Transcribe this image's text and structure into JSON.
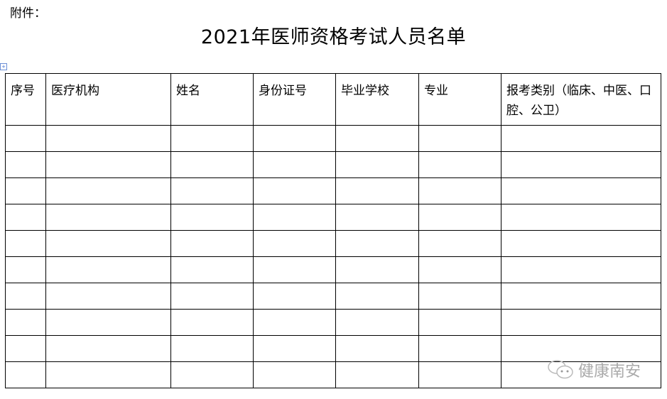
{
  "attachment_label": "附件：",
  "title": "2021年医师资格考试人员名单",
  "table": {
    "headers": [
      "序号",
      "医疗机构",
      "姓名",
      "身份证号",
      "毕业学校",
      "专业",
      "报考类别（临床、中医、口腔、公卫）"
    ],
    "empty_rows": 10
  },
  "watermark": {
    "text": "健康南安",
    "icon": "wechat-icon"
  }
}
